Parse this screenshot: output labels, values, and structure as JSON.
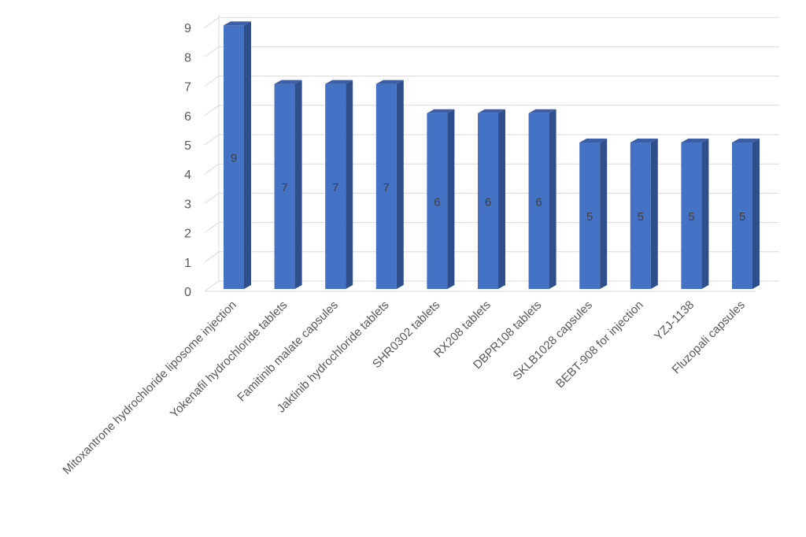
{
  "chart_data": {
    "type": "bar",
    "categories": [
      "Mitoxantrone hydrochloride liposome injection",
      "Yokenafil hydrochloride tablets",
      "Famitinib malate capsules",
      "Jaktinib hydrochloride tablets",
      "SHR0302 tablets",
      "RX208 tablets",
      "DBPR108 tablets",
      "SKLB1028 capsules",
      "BEBT-908 for injection",
      "YZJ-1138",
      "Fluzopali capsules"
    ],
    "values": [
      9,
      7,
      7,
      7,
      6,
      6,
      6,
      5,
      5,
      5,
      5
    ],
    "data_labels": [
      "9",
      "7",
      "7",
      "7",
      "6",
      "6",
      "6",
      "5",
      "5",
      "5",
      "5"
    ],
    "yticks": [
      "0",
      "1",
      "2",
      "3",
      "4",
      "5",
      "6",
      "7",
      "8",
      "9"
    ],
    "ylim": [
      0,
      9
    ],
    "grid": true,
    "bar_3d": true,
    "colors": {
      "front": "#4472C4",
      "side": "#2F4F8C",
      "top": "#3A5FA8",
      "grid": "#D9D9D9"
    }
  }
}
